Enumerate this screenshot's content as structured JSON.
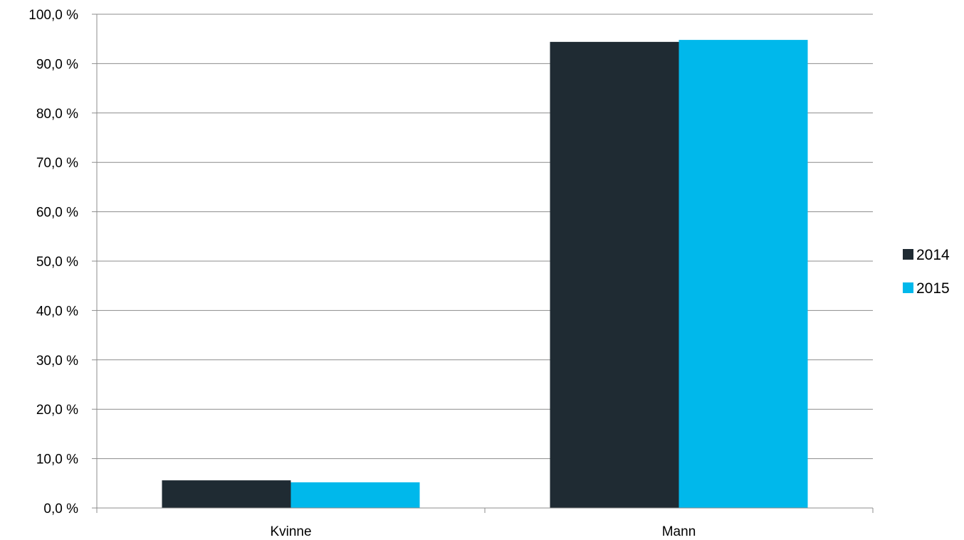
{
  "chart_data": {
    "type": "bar",
    "categories": [
      "Kvinne",
      "Mann"
    ],
    "series": [
      {
        "name": "2014",
        "values": [
          5.6,
          94.4
        ],
        "color": "#1f2b33"
      },
      {
        "name": "2015",
        "values": [
          5.2,
          94.8
        ],
        "color": "#00b8eb"
      }
    ],
    "y_ticks": [
      "0,0 %",
      "10,0 %",
      "20,0 %",
      "30,0 %",
      "40,0 %",
      "50,0 %",
      "60,0 %",
      "70,0 %",
      "80,0 %",
      "90,0 %",
      "100,0 %"
    ],
    "ylim": [
      0,
      100
    ],
    "grid": true,
    "legend_position": "right",
    "title": "",
    "xlabel": "",
    "ylabel": ""
  }
}
